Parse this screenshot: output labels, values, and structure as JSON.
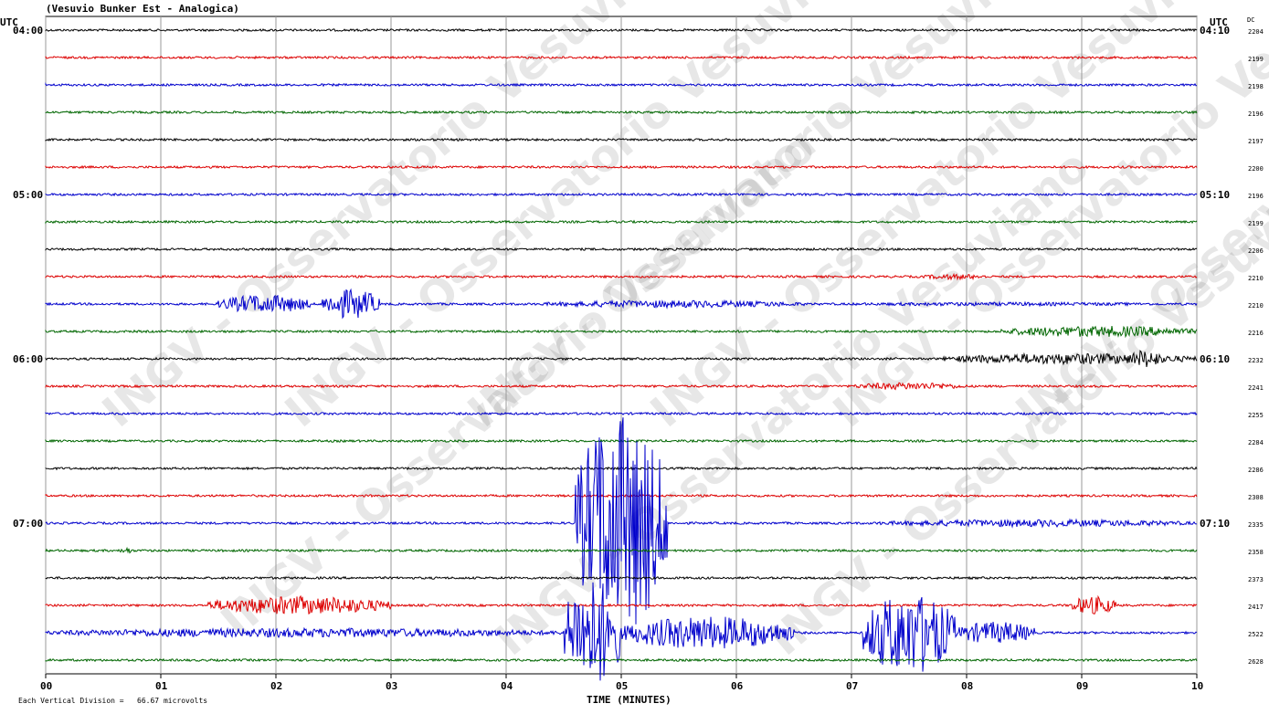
{
  "station_title": "(Vesuvio Bunker Est - Analogica)",
  "utc_label_left": "UTC",
  "utc_label_right": "UTC",
  "dc_label": "DC",
  "x_axis_title": "TIME (MINUTES)",
  "scale_note": "Each Vertical Division =   66.67 microvolts",
  "watermark_text": "INGV - Osservatorio Vesuviano",
  "colors": {
    "black": "#000000",
    "red": "#dd0000",
    "blue": "#0000cc",
    "green": "#006600",
    "grid": "#999999"
  },
  "chart_data": {
    "type": "line",
    "title": "(Vesuvio Bunker Est - Analogica)",
    "xlabel": "TIME (MINUTES)",
    "x_ticks": [
      "00",
      "01",
      "02",
      "03",
      "04",
      "05",
      "06",
      "07",
      "08",
      "09",
      "10"
    ],
    "xlim": [
      0,
      10
    ],
    "grid": true,
    "left_time_labels": [
      {
        "row": 0,
        "text": "04:00"
      },
      {
        "row": 6,
        "text": "05:00"
      },
      {
        "row": 12,
        "text": "06:00"
      },
      {
        "row": 18,
        "text": "07:00"
      }
    ],
    "right_time_labels": [
      {
        "row": 0,
        "text": "04:10"
      },
      {
        "row": 6,
        "text": "05:10"
      },
      {
        "row": 12,
        "text": "06:10"
      },
      {
        "row": 18,
        "text": "07:10"
      }
    ],
    "traces": [
      {
        "color": "black",
        "dc": "2204",
        "bursts": []
      },
      {
        "color": "red",
        "dc": "2199",
        "bursts": []
      },
      {
        "color": "blue",
        "dc": "2198",
        "bursts": []
      },
      {
        "color": "green",
        "dc": "2196",
        "bursts": []
      },
      {
        "color": "black",
        "dc": "2197",
        "bursts": []
      },
      {
        "color": "red",
        "dc": "2200",
        "bursts": []
      },
      {
        "color": "blue",
        "dc": "2196",
        "bursts": []
      },
      {
        "color": "green",
        "dc": "2199",
        "bursts": []
      },
      {
        "color": "black",
        "dc": "2206",
        "bursts": []
      },
      {
        "color": "red",
        "dc": "2210",
        "bursts": [
          [
            7.6,
            8.2,
            3
          ]
        ]
      },
      {
        "color": "blue",
        "dc": "2210",
        "bursts": [
          [
            1.5,
            2.3,
            10
          ],
          [
            2.4,
            2.9,
            16
          ],
          [
            4.3,
            6.6,
            4
          ],
          [
            6.6,
            10,
            2
          ]
        ]
      },
      {
        "color": "green",
        "dc": "2216",
        "bursts": [
          [
            8.3,
            10,
            6
          ]
        ]
      },
      {
        "color": "black",
        "dc": "2232",
        "bursts": [
          [
            7.8,
            10,
            6
          ],
          [
            9.4,
            9.7,
            10
          ]
        ]
      },
      {
        "color": "red",
        "dc": "2241",
        "bursts": [
          [
            7.0,
            8.0,
            4
          ]
        ]
      },
      {
        "color": "blue",
        "dc": "2255",
        "bursts": []
      },
      {
        "color": "green",
        "dc": "2284",
        "bursts": []
      },
      {
        "color": "black",
        "dc": "2286",
        "bursts": []
      },
      {
        "color": "red",
        "dc": "2308",
        "bursts": []
      },
      {
        "color": "blue",
        "dc": "2335",
        "bursts": [
          [
            7.2,
            10,
            4
          ],
          [
            4.6,
            5.4,
            120
          ]
        ]
      },
      {
        "color": "green",
        "dc": "2358",
        "bursts": [
          [
            0.65,
            0.75,
            4
          ]
        ]
      },
      {
        "color": "black",
        "dc": "2373",
        "bursts": []
      },
      {
        "color": "red",
        "dc": "2417",
        "bursts": [
          [
            1.4,
            3.0,
            10
          ],
          [
            8.9,
            9.3,
            10
          ]
        ]
      },
      {
        "color": "blue",
        "dc": "2522",
        "bursts": [
          [
            0.0,
            4.5,
            5
          ],
          [
            4.5,
            5.0,
            60
          ],
          [
            5.0,
            6.5,
            18
          ],
          [
            7.1,
            7.9,
            45
          ],
          [
            7.9,
            8.6,
            12
          ]
        ]
      },
      {
        "color": "green",
        "dc": "2628",
        "bursts": []
      }
    ]
  }
}
